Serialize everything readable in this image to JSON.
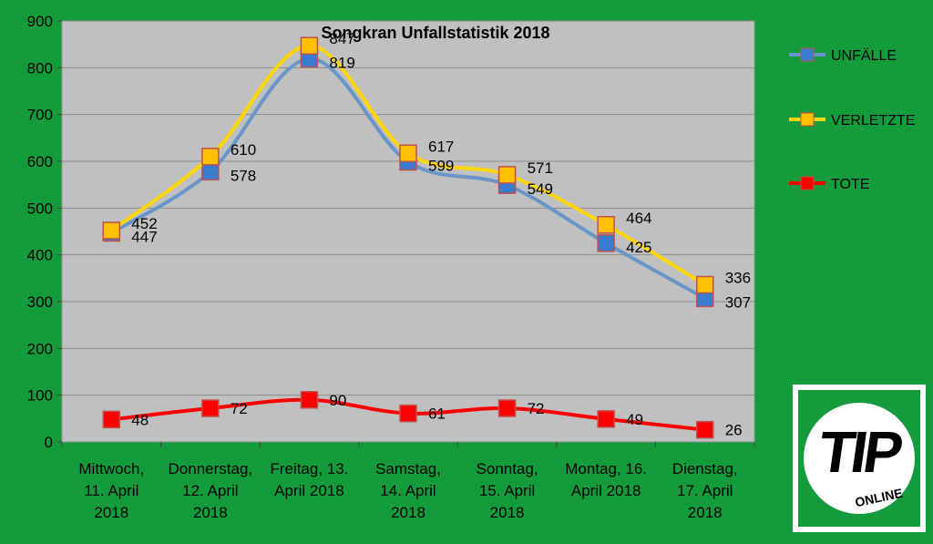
{
  "chart_data": {
    "type": "line",
    "title": "Songkran Unfallstatistik 2018",
    "xlabel": "",
    "ylabel": "",
    "ylim": [
      0,
      900
    ],
    "yticks": [
      0,
      100,
      200,
      300,
      400,
      500,
      600,
      700,
      800,
      900
    ],
    "grid": true,
    "legend_position": "right",
    "categories": [
      [
        "Mittwoch,",
        "11. April",
        "2018"
      ],
      [
        "Donnerstag,",
        "12. April",
        "2018"
      ],
      [
        "Freitag, 13.",
        "April 2018"
      ],
      [
        "Samstag,",
        "14. April",
        "2018"
      ],
      [
        "Sonntag,",
        "15. April",
        "2018"
      ],
      [
        "Montag, 16.",
        "April 2018"
      ],
      [
        "Dienstag,",
        "17. April",
        "2018"
      ]
    ],
    "series": [
      {
        "name": "UNFÄLLE",
        "values": [
          447,
          578,
          819,
          599,
          549,
          425,
          307
        ],
        "color": "#3a7bd0",
        "line_color": "#6a95c8"
      },
      {
        "name": "VERLETZTE",
        "values": [
          452,
          610,
          847,
          617,
          571,
          464,
          336
        ],
        "color": "#ffc000",
        "line_color": "#ffd700"
      },
      {
        "name": "TOTE",
        "values": [
          48,
          72,
          90,
          61,
          72,
          49,
          26
        ],
        "color": "#ff0000",
        "line_color": "#ff0000"
      }
    ]
  },
  "logo": {
    "main": "TIP",
    "sub": "ONLINE"
  }
}
